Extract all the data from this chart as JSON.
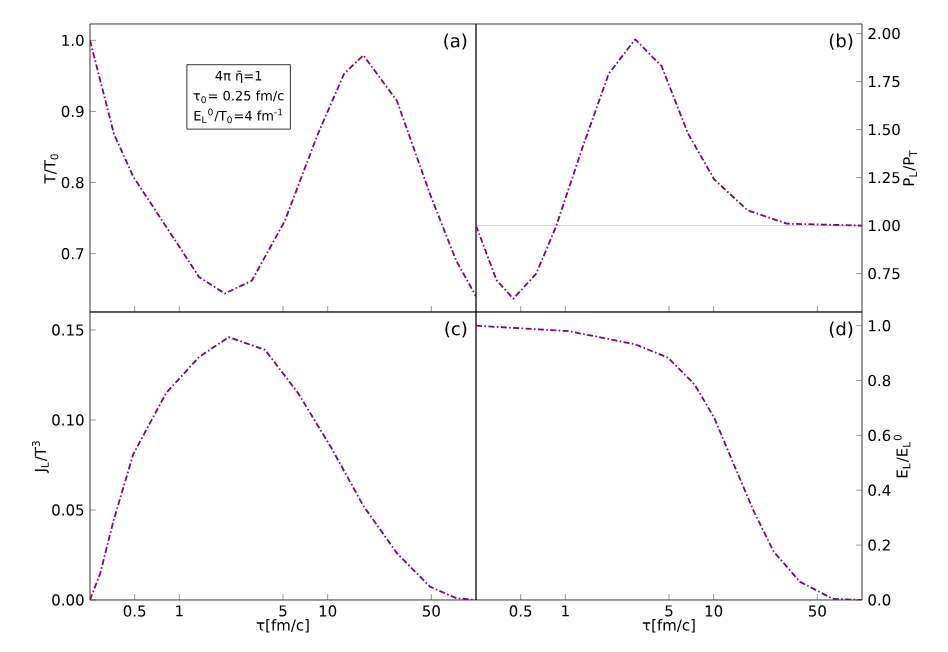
{
  "chart_data": [
    {
      "type": "line",
      "ylabel": "T/T$_{0}$",
      "annotations": [
        "(a)",
        "4π η̄=1",
        "τ$_{0}$= 0.25 fm/c",
        "E$_{L}$$^{0}$/T$_{0}$=4 fm$^{-1}$"
      ],
      "log": "x",
      "xlim": [
        0.25,
        100
      ],
      "xticks": [
        0.5,
        1,
        5,
        10,
        50
      ],
      "ylim": [
        0.618,
        1.023
      ],
      "yticks": [
        0.7,
        0.8,
        0.9,
        {
          "value": 1,
          "label": "1.0"
        }
      ],
      "tick_labels": "y",
      "line_style": "dashed",
      "series": [
        {
          "color": "#800080",
          "x": [
            0.25,
            0.363,
            0.49,
            0.815,
            1.36,
            2.03,
            3.08,
            5.14,
            8.58,
            12.9,
            17.4,
            29.3,
            48.9,
            73.6,
            100
          ],
          "values": [
            1.0,
            0.868,
            0.808,
            0.738,
            0.667,
            0.644,
            0.662,
            0.746,
            0.868,
            0.953,
            0.979,
            0.915,
            0.784,
            0.69,
            0.64
          ]
        }
      ]
    },
    {
      "type": "line",
      "ylabel": "P$_{L}$/P$_{T}$",
      "annotations": [
        "(b)"
      ],
      "log": "x",
      "xlim": [
        0.25,
        100
      ],
      "xticks": [
        0.5,
        1,
        5,
        10,
        50
      ],
      "ylim": [
        0.55,
        2.05
      ],
      "yticks": [
        {
          "value": 0.75,
          "label": "0.75"
        },
        {
          "value": 1,
          "label": "1.00"
        },
        {
          "value": 1.25,
          "label": "1.25"
        },
        {
          "value": 1.5,
          "label": "1.50"
        },
        {
          "value": 1.75,
          "label": "1.75"
        },
        {
          "value": 2,
          "label": "2.00"
        }
      ],
      "tick_labels": "y",
      "line_style": "dashed",
      "ref_lines": [
        {
          "axis": "y",
          "value": 1,
          "color": "#c0c0c0"
        }
      ],
      "series": [
        {
          "color": "#800080",
          "x": [
            0.25,
            0.344,
            0.446,
            0.637,
            0.865,
            1.31,
            1.96,
            2.96,
            4.46,
            6.71,
            10.1,
            16.9,
            31.1,
            100
          ],
          "values": [
            1.0,
            0.716,
            0.619,
            0.75,
            0.994,
            1.41,
            1.79,
            1.97,
            1.83,
            1.48,
            1.24,
            1.08,
            1.01,
            1.0
          ]
        }
      ]
    },
    {
      "type": "line",
      "xlabel": "τ[fm/c]",
      "ylabel": "J$_{L}$/T$^{3}$",
      "annotations": [
        "(c)"
      ],
      "log": "x",
      "xlim": [
        0.25,
        100
      ],
      "xticks": [
        0.5,
        1,
        5,
        10,
        50
      ],
      "ylim": [
        0,
        0.16
      ],
      "yticks": [
        {
          "value": 0,
          "label": "0.00"
        },
        {
          "value": 0.05,
          "label": "0.05"
        },
        {
          "value": 0.1,
          "label": "0.10"
        },
        {
          "value": 0.15,
          "label": "0.15"
        }
      ],
      "line_style": "dashed",
      "series": [
        {
          "color": "#800080",
          "x": [
            0.25,
            0.293,
            0.36,
            0.489,
            0.815,
            1.36,
            2.15,
            3.78,
            6.31,
            10.5,
            17.5,
            29.3,
            48.9,
            73.6,
            100
          ],
          "values": [
            0,
            0.0148,
            0.044,
            0.081,
            0.115,
            0.135,
            0.146,
            0.139,
            0.115,
            0.085,
            0.052,
            0.026,
            0.0074,
            0.001,
            0
          ]
        }
      ]
    },
    {
      "type": "line",
      "xlabel": "τ[fm/c]",
      "ylabel": "E$_{L}$/E$_{L}$$^{0}$",
      "annotations": [
        "(d)"
      ],
      "log": "x",
      "xlim": [
        0.25,
        100
      ],
      "xticks": [
        0.5,
        1,
        5,
        10,
        50
      ],
      "ylim": [
        0,
        1.05
      ],
      "yticks": [
        {
          "value": 0,
          "label": "0.0"
        },
        0.2,
        0.4,
        0.6,
        0.8,
        {
          "value": 1,
          "label": "1.0"
        }
      ],
      "line_style": "dashed",
      "series": [
        {
          "color": "#800080",
          "x": [
            0.25,
            1.06,
            2.96,
            4.94,
            7.43,
            10.1,
            13.7,
            18.7,
            25.4,
            38.2,
            63.7,
            100
          ],
          "values": [
            1.0,
            0.98,
            0.932,
            0.883,
            0.786,
            0.664,
            0.493,
            0.322,
            0.176,
            0.066,
            0.004,
            0
          ]
        }
      ]
    }
  ]
}
